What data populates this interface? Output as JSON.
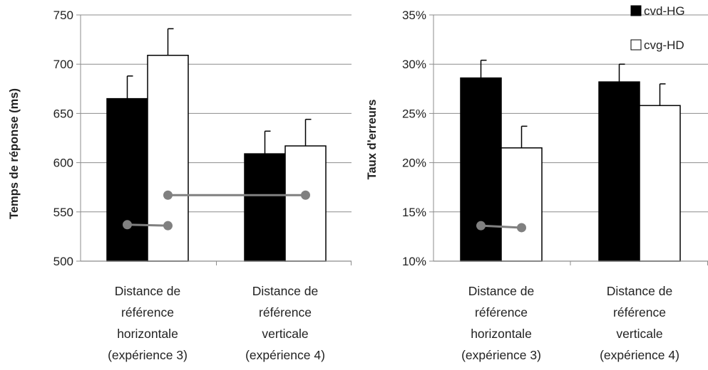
{
  "colors": {
    "cvd_fill": "#000000",
    "cvg_fill": "#ffffff",
    "bar_stroke": "#000000",
    "connector": "#808080",
    "axis": "#808080"
  },
  "legend": [
    {
      "label": "cvd-HG",
      "color": "#000000"
    },
    {
      "label": "cvg-HD",
      "color": "#ffffff"
    }
  ],
  "chart_data": [
    {
      "type": "bar",
      "ylabel": "Temps de réponse (ms)",
      "ylim": [
        500,
        750
      ],
      "yticks": [
        "500",
        "550",
        "600",
        "650",
        "700",
        "750"
      ],
      "categories": [
        [
          "Distance de",
          "référence",
          "horizontale",
          "(expérience 3)"
        ],
        [
          "Distance de",
          "référence",
          "verticale",
          "(expérience 4)"
        ]
      ],
      "series": [
        {
          "name": "cvd-HG",
          "values": [
            665,
            609
          ],
          "errors": [
            23,
            23
          ]
        },
        {
          "name": "cvg-HD",
          "values": [
            709,
            617
          ],
          "errors": [
            27,
            27
          ]
        }
      ],
      "annotations": [
        {
          "kind": "connector",
          "from": [
            0,
            "cvd-HG",
            537
          ],
          "to": [
            0,
            "cvg-HD",
            536
          ]
        },
        {
          "kind": "connector",
          "from": [
            0,
            "cvg-HD",
            567
          ],
          "to": [
            1,
            "cvg-HD",
            567
          ]
        }
      ],
      "grid": true,
      "legend": null
    },
    {
      "type": "bar",
      "ylabel": "Taux d'erreurs",
      "ylim": [
        10,
        35
      ],
      "yticks": [
        "10%",
        "15%",
        "20%",
        "25%",
        "30%",
        "35%"
      ],
      "categories": [
        [
          "Distance de",
          "référence",
          "horizontale",
          "(expérience 3)"
        ],
        [
          "Distance de",
          "référence",
          "verticale",
          "(expérience 4)"
        ]
      ],
      "series": [
        {
          "name": "cvd-HG",
          "values": [
            28.6,
            28.2
          ],
          "errors": [
            1.8,
            1.8
          ]
        },
        {
          "name": "cvg-HD",
          "values": [
            21.5,
            25.8
          ],
          "errors": [
            2.2,
            2.2
          ]
        }
      ],
      "annotations": [
        {
          "kind": "connector",
          "from": [
            0,
            "cvd-HG",
            13.6
          ],
          "to": [
            0,
            "cvg-HD",
            13.4
          ]
        }
      ],
      "grid": true,
      "legend": "top-right"
    }
  ]
}
